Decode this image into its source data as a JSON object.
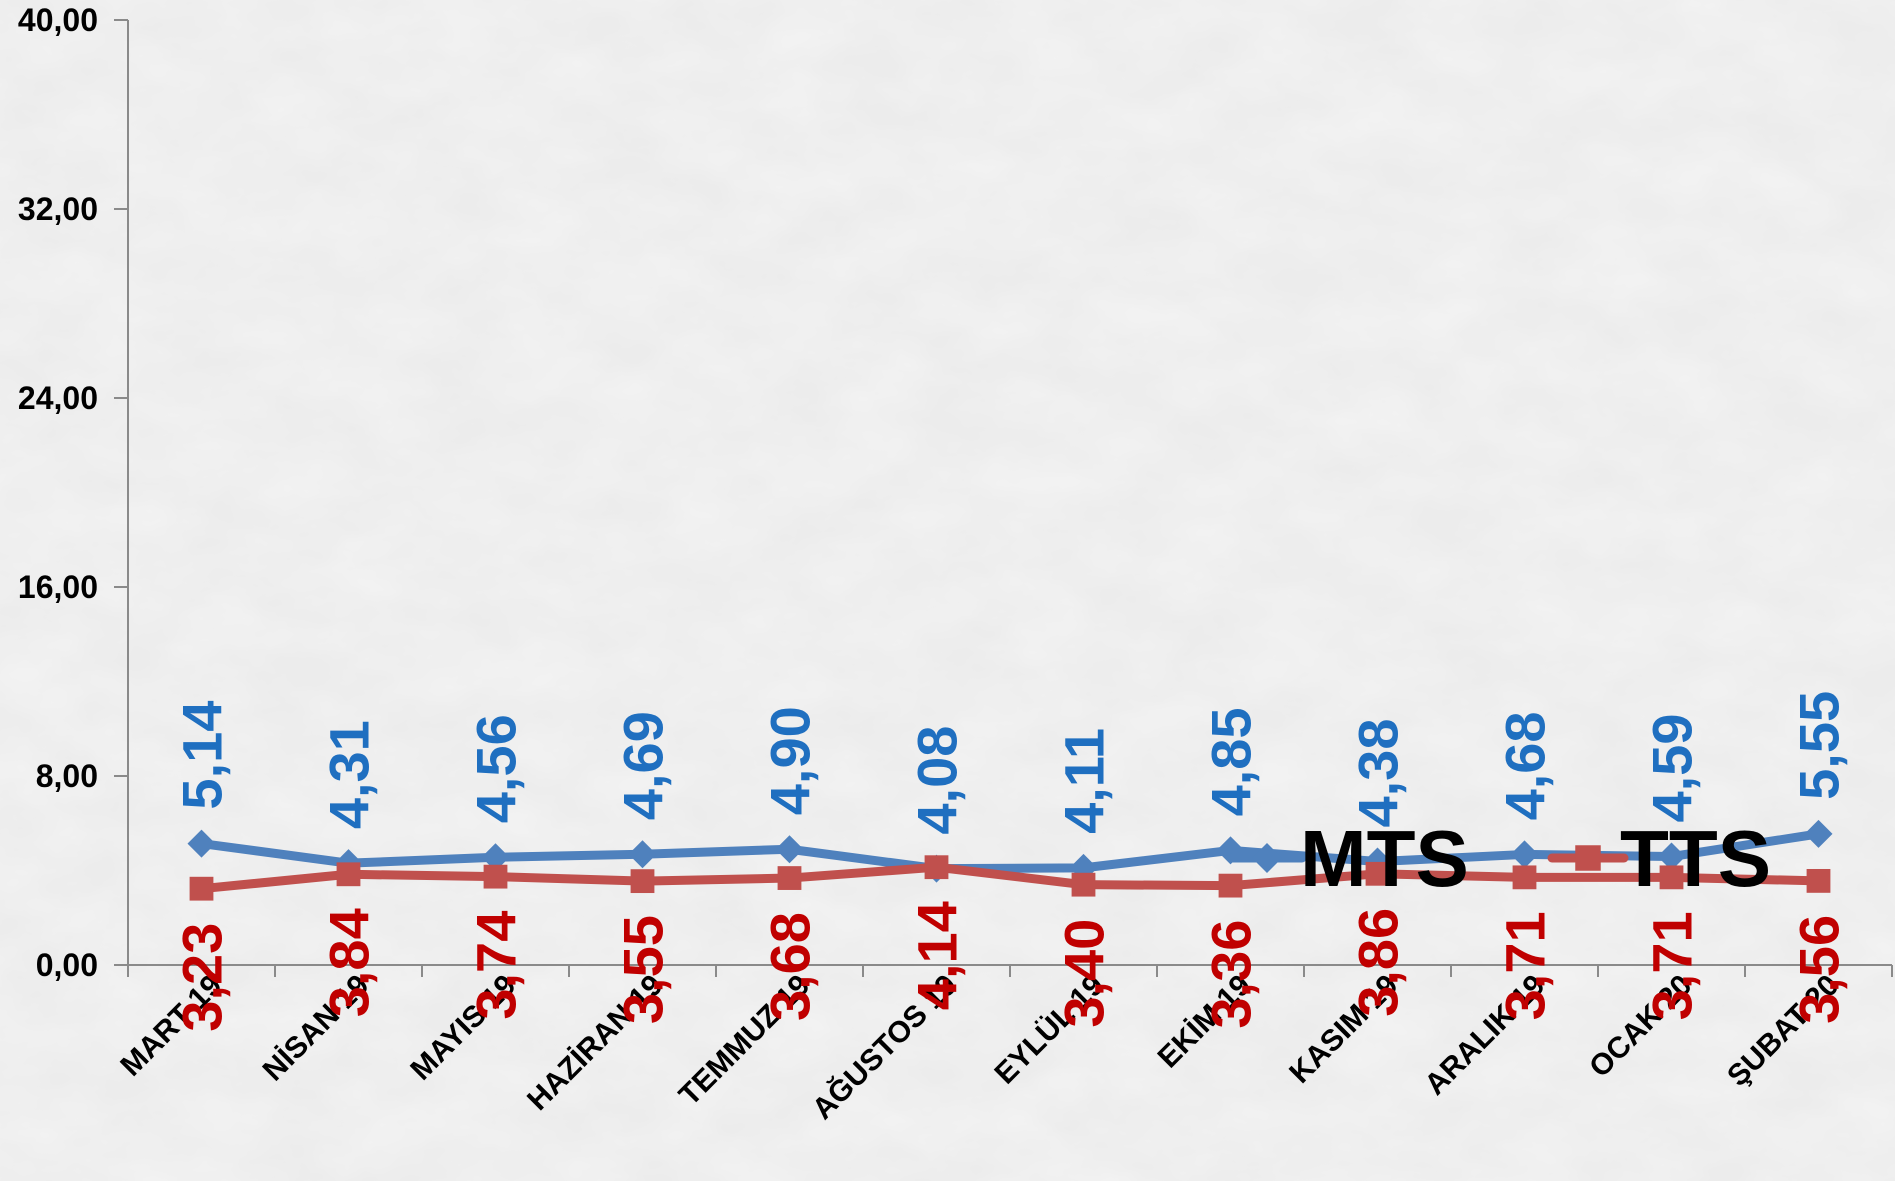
{
  "chart_data": {
    "type": "line",
    "categories": [
      "MART 19",
      "NİSAN 19",
      "MAYIS 19",
      "HAZİRAN 19",
      "TEMMUZ 19",
      "AĞUSTOS 19",
      "EYLÜL 19",
      "EKİM 19",
      "KASIM 19",
      "ARALIK 19",
      "OCAK 20",
      "ŞUBAT 20"
    ],
    "series": [
      {
        "name": "MTS",
        "color": "#4f81bd",
        "label_color": "#1f6fc0",
        "marker": "diamond",
        "values": [
          5.14,
          4.31,
          4.56,
          4.69,
          4.9,
          4.08,
          4.11,
          4.85,
          4.38,
          4.68,
          4.59,
          5.55
        ],
        "labels": [
          "5,14",
          "4,31",
          "4,56",
          "4,69",
          "4,90",
          "4,08",
          "4,11",
          "4,85",
          "4,38",
          "4,68",
          "4,59",
          "5,55"
        ]
      },
      {
        "name": "TTS",
        "color": "#c0504d",
        "label_color": "#c00000",
        "marker": "square",
        "values": [
          3.23,
          3.84,
          3.74,
          3.55,
          3.68,
          4.14,
          3.4,
          3.36,
          3.86,
          3.71,
          3.71,
          3.56
        ],
        "labels": [
          "3,23",
          "3,84",
          "3,74",
          "3,55",
          "3,68",
          "4,14",
          "3,40",
          "3,36",
          "3,86",
          "3,71",
          "3,71",
          "3,56"
        ]
      }
    ],
    "ylim": [
      0,
      40
    ],
    "yticks": [
      0,
      8,
      16,
      24,
      32,
      40
    ],
    "ytick_labels": [
      "0,00",
      "8,00",
      "16,00",
      "24,00",
      "32,00",
      "40,00"
    ],
    "grid": false,
    "legend": {
      "placement": "inside-right",
      "entries": [
        "MTS",
        "TTS"
      ]
    }
  }
}
